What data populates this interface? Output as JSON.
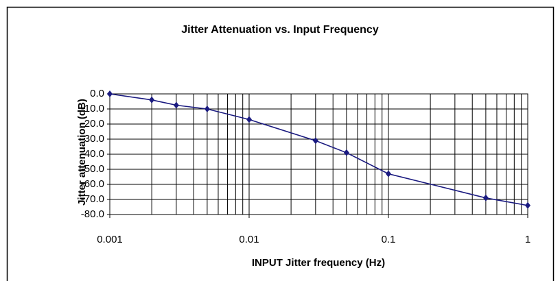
{
  "chart_data": {
    "type": "line",
    "title": "Jitter Attenuation vs. Input Frequency",
    "x_label": "INPUT Jitter frequency (Hz)",
    "y_label": "Jitter attenuation (dB)",
    "x": [
      0.001,
      0.002,
      0.003,
      0.005,
      0.01,
      0.03,
      0.05,
      0.1,
      0.5,
      1
    ],
    "series": [
      {
        "name": "Jitter attenuation",
        "color": "#1a1a80",
        "values": [
          0,
          -4,
          -7.5,
          -10,
          -17,
          -31,
          -39,
          -53,
          -69,
          -74
        ]
      }
    ],
    "xlim": [
      0.001,
      1
    ],
    "xticks": [
      0.001,
      0.01,
      0.1,
      1
    ],
    "x_log": true,
    "ylim": [
      -80,
      0
    ],
    "yticks": [
      {
        "value": 0,
        "label": "0.0"
      },
      {
        "value": -10,
        "label": "-10.0"
      },
      {
        "value": -20,
        "label": "-20.0"
      },
      {
        "value": -30,
        "label": "-30.0"
      },
      {
        "value": -40,
        "label": "-40.0"
      },
      {
        "value": -50,
        "label": "-50.0"
      },
      {
        "value": -60,
        "label": "-60.0"
      },
      {
        "value": -70,
        "label": "-70.0"
      },
      {
        "value": -80,
        "label": "-80.0"
      }
    ],
    "grid": true,
    "minor_grid": true
  }
}
